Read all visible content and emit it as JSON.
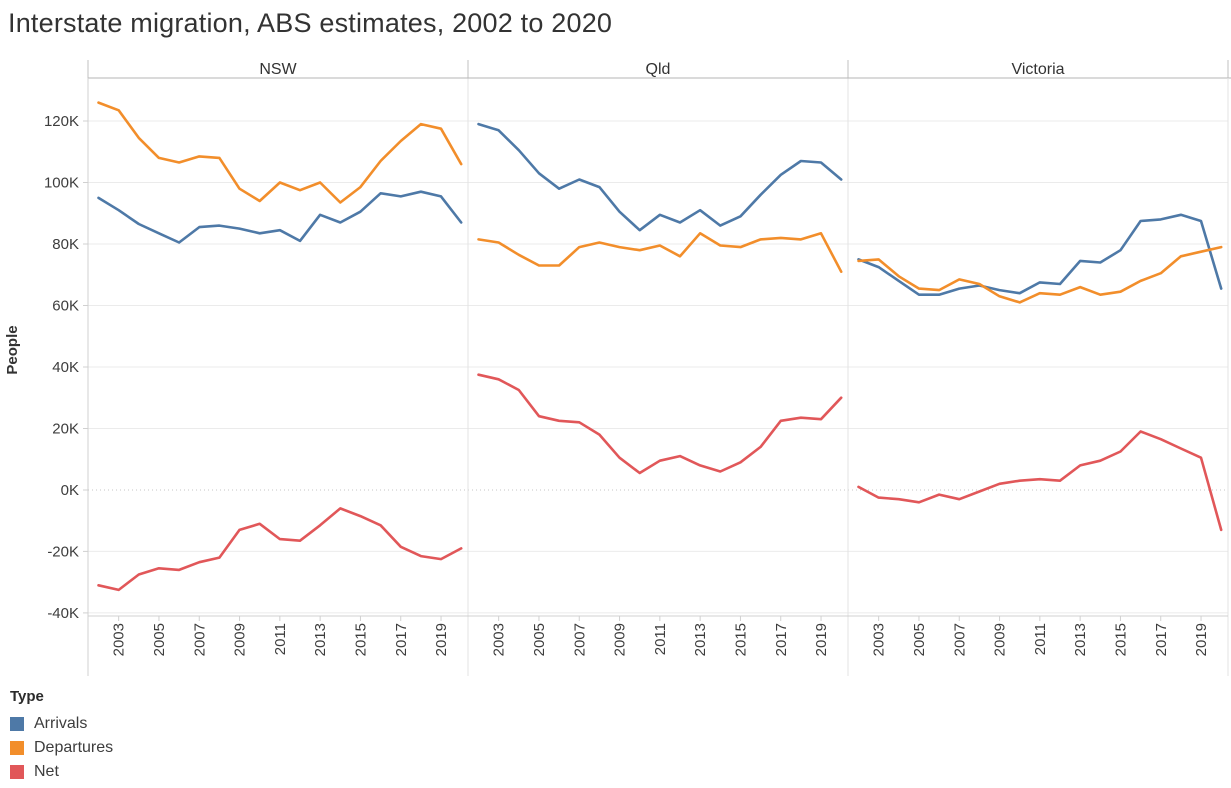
{
  "title": "Interstate migration, ABS estimates, 2002 to 2020",
  "legend": {
    "title": "Type",
    "items": [
      {
        "label": "Arrivals",
        "color": "#4e79a7"
      },
      {
        "label": "Departures",
        "color": "#f28e2b"
      },
      {
        "label": "Net",
        "color": "#e15759"
      }
    ]
  },
  "chart_data": {
    "type": "line",
    "title": "Interstate migration, ABS estimates, 2002 to 2020",
    "ylabel": "People",
    "units": "thousands of people (values in K)",
    "grid": "horizontal gridlines every 20K, zero line dotted",
    "legend_position": "bottom-left",
    "ylim": [
      -41,
      134
    ],
    "x": [
      2002,
      2003,
      2004,
      2005,
      2006,
      2007,
      2008,
      2009,
      2010,
      2011,
      2012,
      2013,
      2014,
      2015,
      2016,
      2017,
      2018,
      2019,
      2020
    ],
    "x_tick_labels": [
      "2003",
      "2005",
      "2007",
      "2009",
      "2011",
      "2013",
      "2015",
      "2017",
      "2019"
    ],
    "y_ticks": [
      {
        "value": -40,
        "label": "-40K"
      },
      {
        "value": -20,
        "label": "-20K"
      },
      {
        "value": 0,
        "label": "0K"
      },
      {
        "value": 20,
        "label": "20K"
      },
      {
        "value": 40,
        "label": "40K"
      },
      {
        "value": 60,
        "label": "60K"
      },
      {
        "value": 80,
        "label": "80K"
      },
      {
        "value": 100,
        "label": "100K"
      },
      {
        "value": 120,
        "label": "120K"
      }
    ],
    "panels": [
      {
        "title": "NSW",
        "series": [
          {
            "name": "Arrivals",
            "color": "#4e79a7",
            "values": [
              95,
              91,
              86.5,
              83.5,
              80.5,
              85.5,
              86,
              85,
              83.5,
              84.5,
              81,
              89.5,
              87,
              90.5,
              96.5,
              95.5,
              97,
              95.5,
              87
            ]
          },
          {
            "name": "Departures",
            "color": "#f28e2b",
            "values": [
              126,
              123.5,
              114.5,
              108,
              106.5,
              108.5,
              108,
              98,
              94,
              100,
              97.5,
              100,
              93.5,
              98.5,
              107,
              113.5,
              119,
              117.5,
              106
            ]
          },
          {
            "name": "Net",
            "color": "#e15759",
            "values": [
              -31,
              -32.5,
              -27.5,
              -25.5,
              -26,
              -23.5,
              -22,
              -13,
              -11,
              -16,
              -16.5,
              -11.5,
              -6,
              -8.5,
              -11.5,
              -18.5,
              -21.5,
              -22.5,
              -19
            ]
          }
        ]
      },
      {
        "title": "Qld",
        "series": [
          {
            "name": "Arrivals",
            "color": "#4e79a7",
            "values": [
              119,
              117,
              110.5,
              103,
              98,
              101,
              98.5,
              90.5,
              84.5,
              89.5,
              87,
              91,
              86,
              89,
              96,
              102.5,
              107,
              106.5,
              101
            ]
          },
          {
            "name": "Departures",
            "color": "#f28e2b",
            "values": [
              81.5,
              80.5,
              76.5,
              73,
              73,
              79,
              80.5,
              79,
              78,
              79.5,
              76,
              83.5,
              79.5,
              79,
              81.5,
              82,
              81.5,
              83.5,
              71
            ]
          },
          {
            "name": "Net",
            "color": "#e15759",
            "values": [
              37.5,
              36,
              32.5,
              24,
              22.5,
              22,
              18,
              10.5,
              5.5,
              9.5,
              11,
              8,
              6,
              9,
              14,
              22.5,
              23.5,
              23,
              30
            ]
          }
        ]
      },
      {
        "title": "Victoria",
        "series": [
          {
            "name": "Arrivals",
            "color": "#4e79a7",
            "values": [
              75,
              72.5,
              68,
              63.5,
              63.5,
              65.5,
              66.5,
              65,
              64,
              67.5,
              67,
              74.5,
              74,
              78,
              87.5,
              88,
              89.5,
              87.5,
              65.5
            ]
          },
          {
            "name": "Departures",
            "color": "#f28e2b",
            "values": [
              74.5,
              75,
              69.5,
              65.5,
              65,
              68.5,
              67,
              63,
              61,
              64,
              63.5,
              66,
              63.5,
              64.5,
              68,
              70.5,
              76,
              77.5,
              79
            ]
          },
          {
            "name": "Net",
            "color": "#e15759",
            "values": [
              1,
              -2.5,
              -3,
              -4,
              -1.5,
              -3,
              -0.5,
              2,
              3,
              3.5,
              3,
              8,
              9.5,
              12.5,
              19,
              16.5,
              13.5,
              10.5,
              -13
            ]
          }
        ]
      }
    ]
  }
}
